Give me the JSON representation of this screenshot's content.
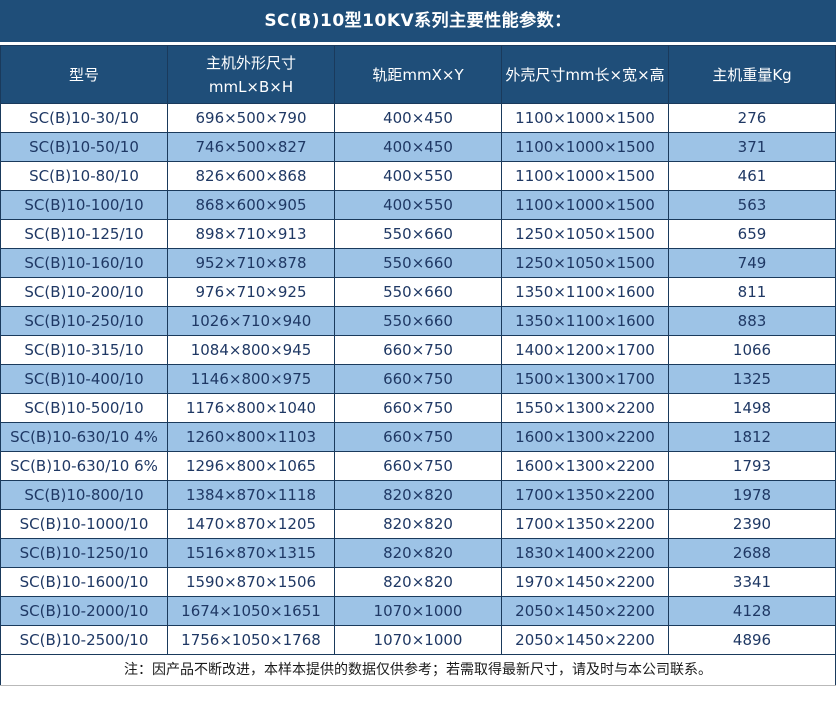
{
  "title": "SC(B)10型10KV系列主要性能参数：",
  "colors": {
    "header_bg": "#1F4E79",
    "row_alt_bg": "#9DC3E6",
    "row_bg": "#FFFFFF",
    "border": "#1A3A5C",
    "header_text": "#FFFFFF",
    "cell_text": "#1F3864",
    "note_text": "#1A1A1A"
  },
  "table": {
    "headers": [
      "型号",
      "主机外形尺寸\nmmL×B×H",
      "轨距mmX×Y",
      "外壳尺寸mm长×宽×高",
      "主机重量Kg"
    ],
    "rows": [
      [
        "SC(B)10-30/10",
        "696×500×790",
        "400×450",
        "1100×1000×1500",
        "276"
      ],
      [
        "SC(B)10-50/10",
        "746×500×827",
        "400×450",
        "1100×1000×1500",
        "371"
      ],
      [
        "SC(B)10-80/10",
        "826×600×868",
        "400×550",
        "1100×1000×1500",
        "461"
      ],
      [
        "SC(B)10-100/10",
        "868×600×905",
        "400×550",
        "1100×1000×1500",
        "563"
      ],
      [
        "SC(B)10-125/10",
        "898×710×913",
        "550×660",
        "1250×1050×1500",
        "659"
      ],
      [
        "SC(B)10-160/10",
        "952×710×878",
        "550×660",
        "1250×1050×1500",
        "749"
      ],
      [
        "SC(B)10-200/10",
        "976×710×925",
        "550×660",
        "1350×1100×1600",
        "811"
      ],
      [
        "SC(B)10-250/10",
        "1026×710×940",
        "550×660",
        "1350×1100×1600",
        "883"
      ],
      [
        "SC(B)10-315/10",
        "1084×800×945",
        "660×750",
        "1400×1200×1700",
        "1066"
      ],
      [
        "SC(B)10-400/10",
        "1146×800×975",
        "660×750",
        "1500×1300×1700",
        "1325"
      ],
      [
        "SC(B)10-500/10",
        "1176×800×1040",
        "660×750",
        "1550×1300×2200",
        "1498"
      ],
      [
        "SC(B)10-630/10 4%",
        "1260×800×1103",
        "660×750",
        "1600×1300×2200",
        "1812"
      ],
      [
        "SC(B)10-630/10 6%",
        "1296×800×1065",
        "660×750",
        "1600×1300×2200",
        "1793"
      ],
      [
        "SC(B)10-800/10",
        "1384×870×1118",
        "820×820",
        "1700×1350×2200",
        "1978"
      ],
      [
        "SC(B)10-1000/10",
        "1470×870×1205",
        "820×820",
        "1700×1350×2200",
        "2390"
      ],
      [
        "SC(B)10-1250/10",
        "1516×870×1315",
        "820×820",
        "1830×1400×2200",
        "2688"
      ],
      [
        "SC(B)10-1600/10",
        "1590×870×1506",
        "820×820",
        "1970×1450×2200",
        "3341"
      ],
      [
        "SC(B)10-2000/10",
        "1674×1050×1651",
        "1070×1000",
        "2050×1450×2200",
        "4128"
      ],
      [
        "SC(B)10-2500/10",
        "1756×1050×1768",
        "1070×1000",
        "2050×1450×2200",
        "4896"
      ]
    ]
  },
  "note": "注：因产品不断改进，本样本提供的数据仅供参考；若需取得最新尺寸，请及时与本公司联系。"
}
